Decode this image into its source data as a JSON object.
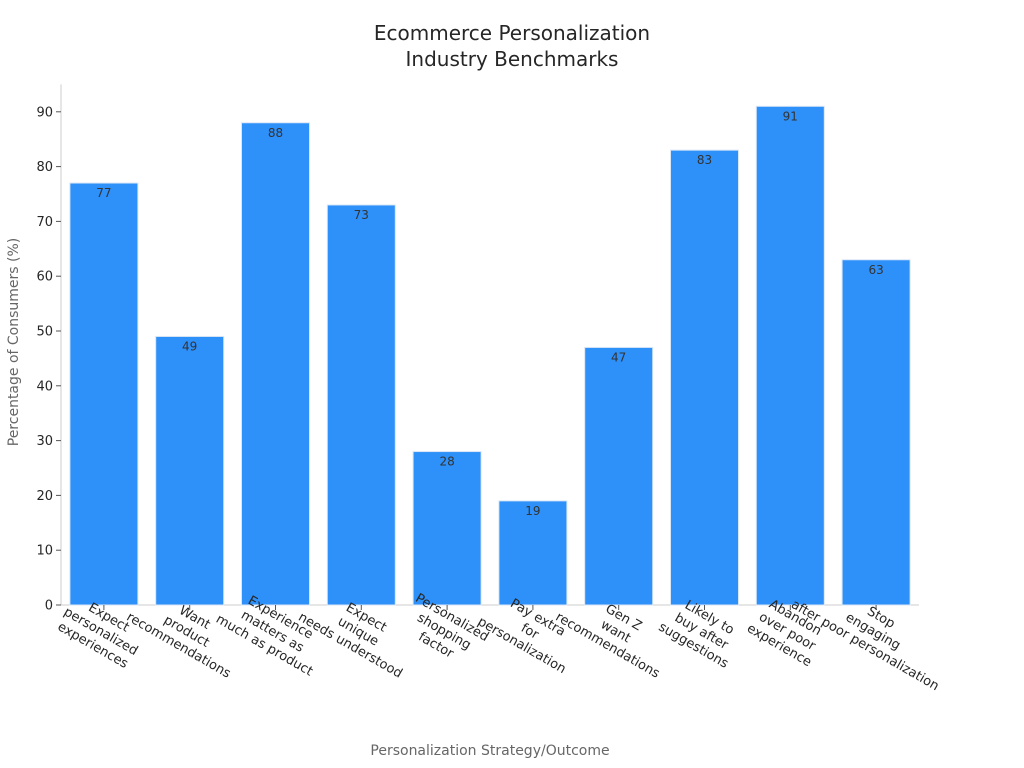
{
  "chart_data": {
    "type": "bar",
    "title_lines": [
      "Ecommerce Personalization",
      "Industry Benchmarks"
    ],
    "xlabel": "Personalization Strategy/Outcome",
    "ylabel": "Percentage of Consumers (%)",
    "ylim": [
      0,
      95
    ],
    "yticks": [
      0,
      10,
      20,
      30,
      40,
      50,
      60,
      70,
      80,
      90
    ],
    "grid": false,
    "bar_color": "#2E90F9",
    "categories": [
      [
        "Expect",
        "personalized",
        "experiences"
      ],
      [
        "Want",
        "product",
        "recommendations"
      ],
      [
        "Experience",
        "matters as",
        "much as product"
      ],
      [
        "Expect",
        "unique",
        "needs understood"
      ],
      [
        "Personalized",
        "shopping",
        "factor"
      ],
      [
        "Pay extra",
        "for",
        "personalization"
      ],
      [
        "Gen Z",
        "want",
        "recommendations"
      ],
      [
        "Likely to",
        "buy after",
        "suggestions"
      ],
      [
        "Abandon",
        "over poor",
        "experience"
      ],
      [
        "Stop",
        "engaging",
        "after poor personalization"
      ]
    ],
    "values": [
      77,
      49,
      88,
      73,
      28,
      19,
      47,
      83,
      91,
      63
    ]
  }
}
